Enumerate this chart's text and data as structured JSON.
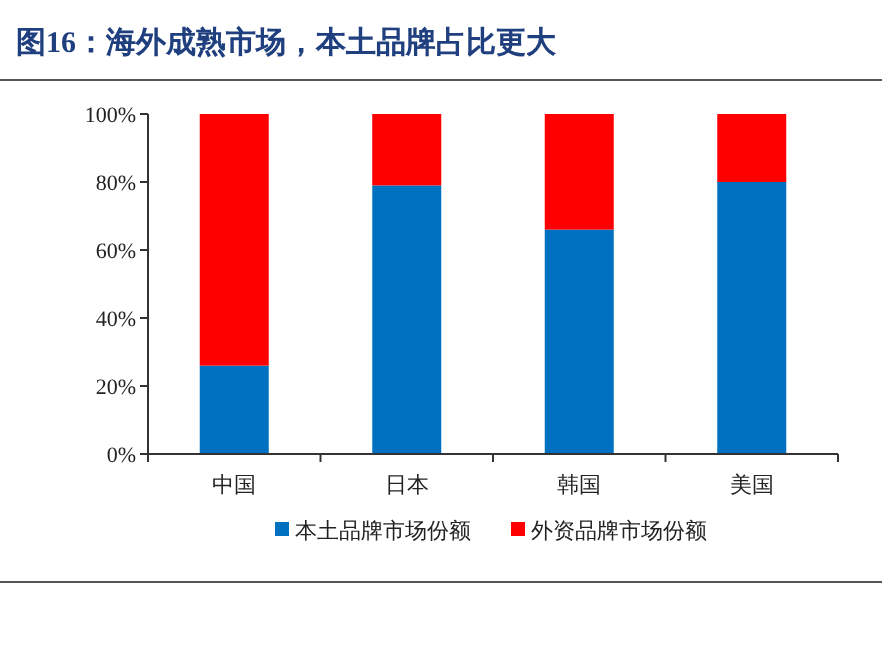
{
  "chart_data": {
    "type": "bar",
    "stacked": true,
    "title": "图16：海外成熟市场，本土品牌占比更大",
    "categories": [
      "中国",
      "日本",
      "韩国",
      "美国"
    ],
    "series": [
      {
        "name": "本土品牌市场份额",
        "color": "#0070c0",
        "values": [
          26,
          79,
          66,
          80
        ]
      },
      {
        "name": "外资品牌市场份额",
        "color": "#ff0000",
        "values": [
          74,
          21,
          34,
          20
        ]
      }
    ],
    "ylim": [
      0,
      100
    ],
    "yticks": [
      {
        "value": 0,
        "label": "0%"
      },
      {
        "value": 20,
        "label": "20%"
      },
      {
        "value": 40,
        "label": "40%"
      },
      {
        "value": 60,
        "label": "60%"
      },
      {
        "value": 80,
        "label": "80%"
      },
      {
        "value": 100,
        "label": "100%"
      }
    ],
    "grid": false,
    "legend": "bottom"
  }
}
